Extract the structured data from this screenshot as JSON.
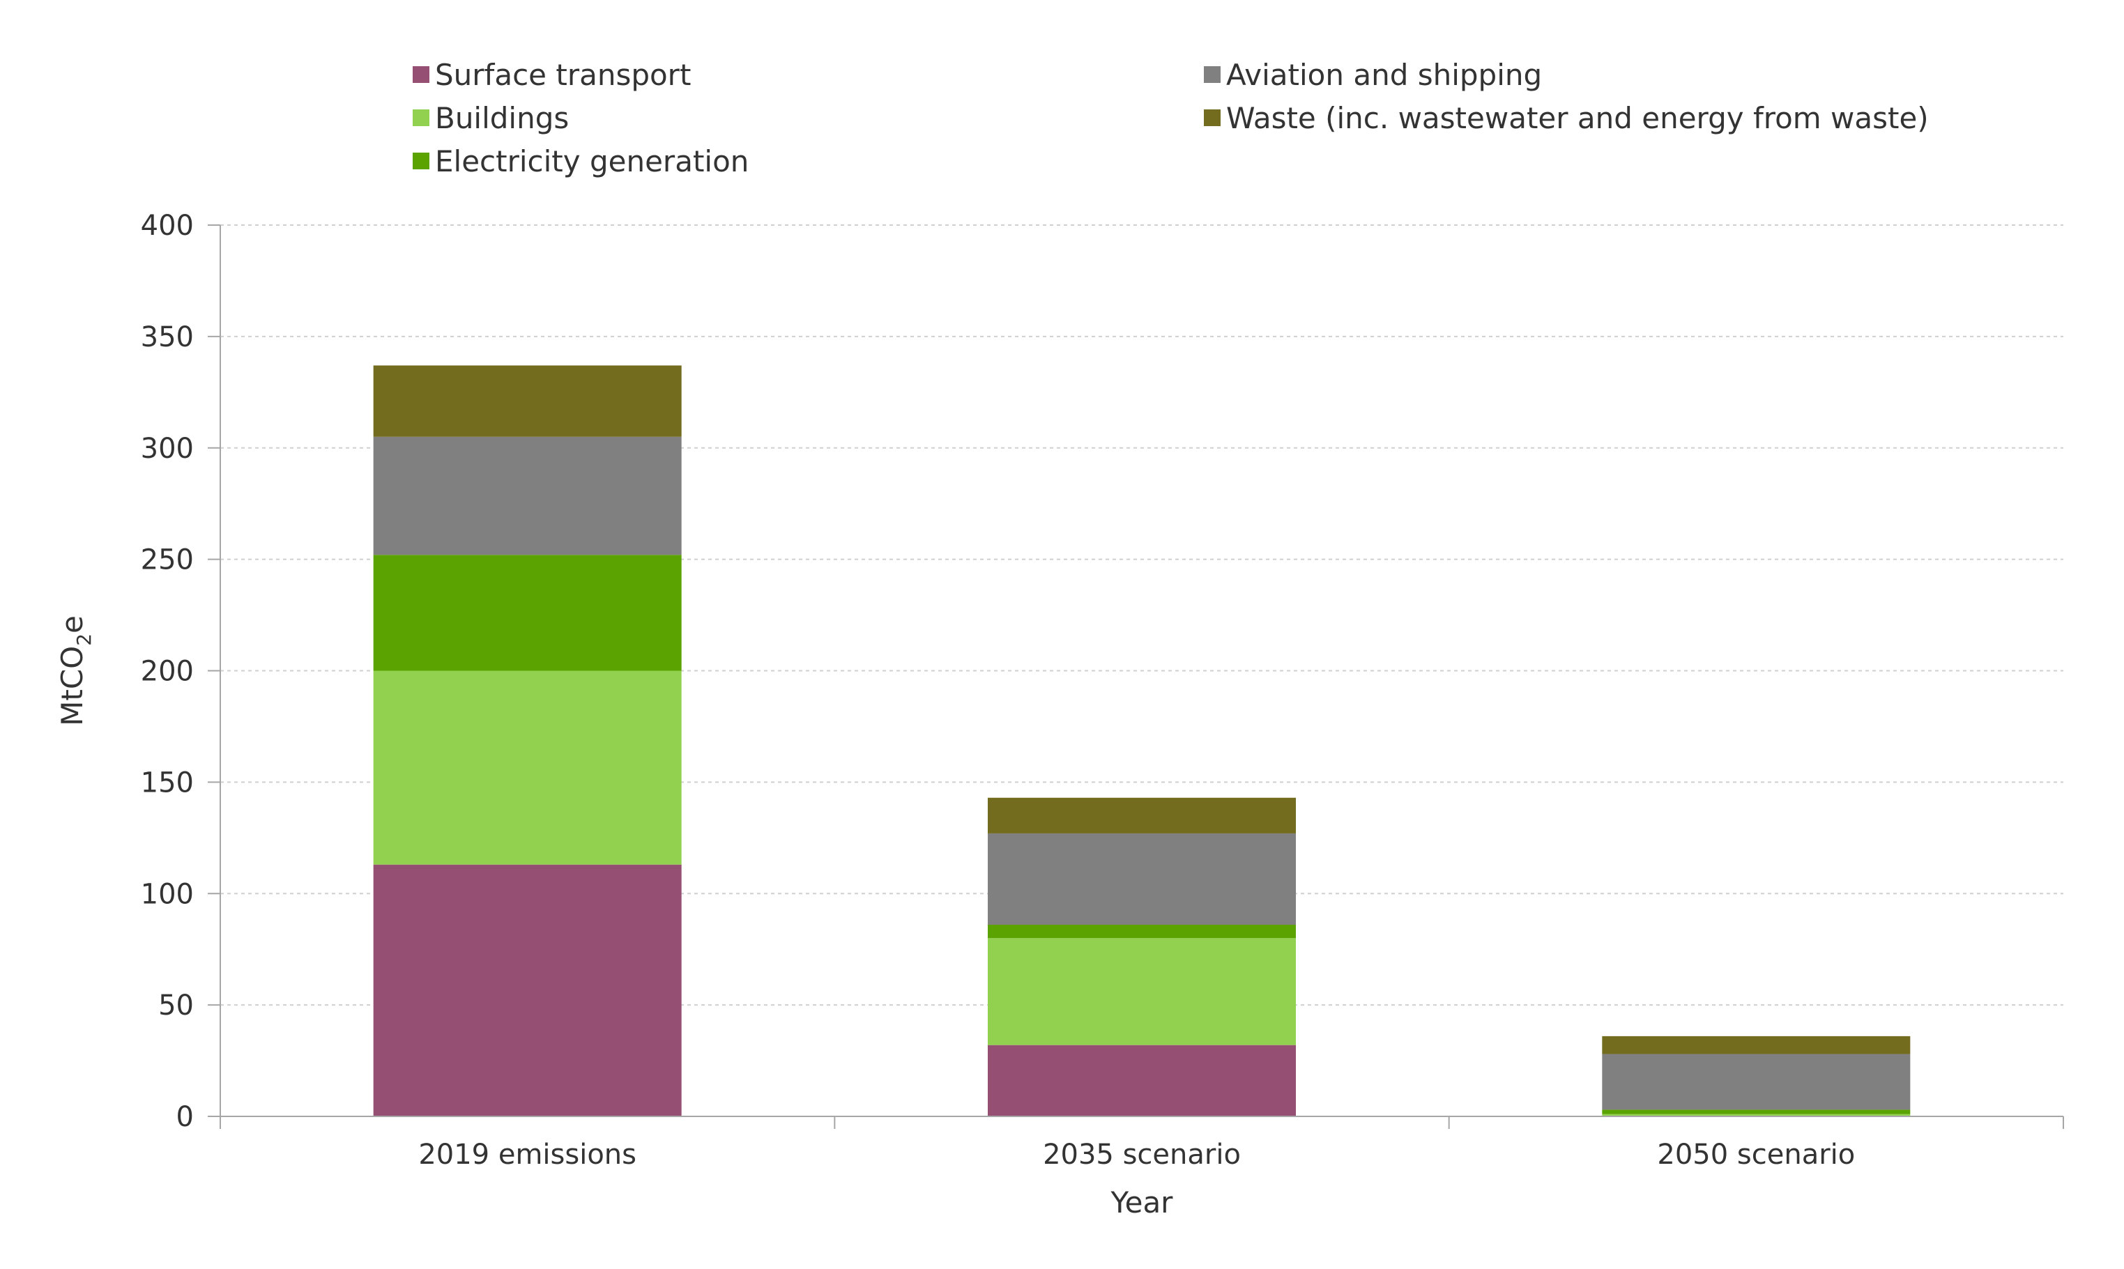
{
  "chart_data": {
    "type": "bar",
    "stacked": true,
    "categories": [
      "2019 emissions",
      "2035 scenario",
      "2050 scenario"
    ],
    "series": [
      {
        "name": "Surface transport",
        "color": "#954F72",
        "values": [
          113,
          32,
          0
        ]
      },
      {
        "name": "Buildings",
        "color": "#92D050",
        "values": [
          87,
          48,
          1
        ]
      },
      {
        "name": "Electricity generation",
        "color": "#5BA300",
        "values": [
          52,
          6,
          2
        ]
      },
      {
        "name": "Aviation and shipping",
        "color": "#808080",
        "values": [
          53,
          41,
          25
        ]
      },
      {
        "name": "Waste (inc. wastewater and energy from waste)",
        "color": "#736B1E",
        "values": [
          32,
          16,
          8
        ]
      }
    ],
    "xlabel": "Year",
    "ylabel": {
      "main": "MtCO",
      "subscript": "2",
      "suffix": "e"
    },
    "ylim": [
      0,
      400
    ],
    "yticks": [
      0,
      50,
      100,
      150,
      200,
      250,
      300,
      350,
      400
    ],
    "grid": true,
    "legend_position": "top"
  }
}
